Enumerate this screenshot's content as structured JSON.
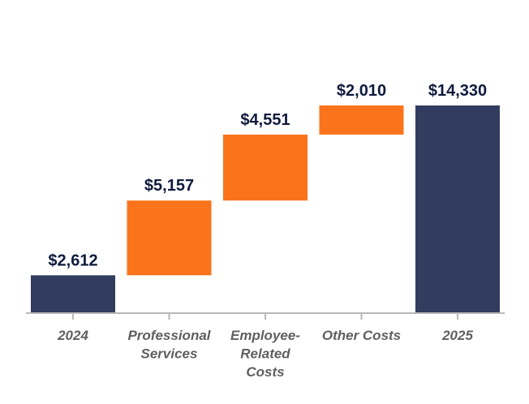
{
  "chart_data": {
    "type": "bar",
    "subtype": "waterfall",
    "categories": [
      [
        "2024"
      ],
      [
        "Professional",
        "Services"
      ],
      [
        "Employee-",
        "Related",
        "Costs"
      ],
      [
        "Other Costs"
      ],
      [
        "2025"
      ]
    ],
    "values": [
      2612,
      5157,
      4551,
      2010,
      14330
    ],
    "kinds": [
      "total",
      "increase",
      "increase",
      "increase",
      "total"
    ],
    "labels": [
      "$2,612",
      "$5,157",
      "$4,551",
      "$2,010",
      "$14,330"
    ],
    "colors": {
      "total": "#313c5e",
      "increase": "#fb731a"
    },
    "title": "",
    "xlabel": "",
    "ylabel": "",
    "ylim": [
      0,
      14330
    ],
    "grid": false,
    "legend": "none"
  }
}
